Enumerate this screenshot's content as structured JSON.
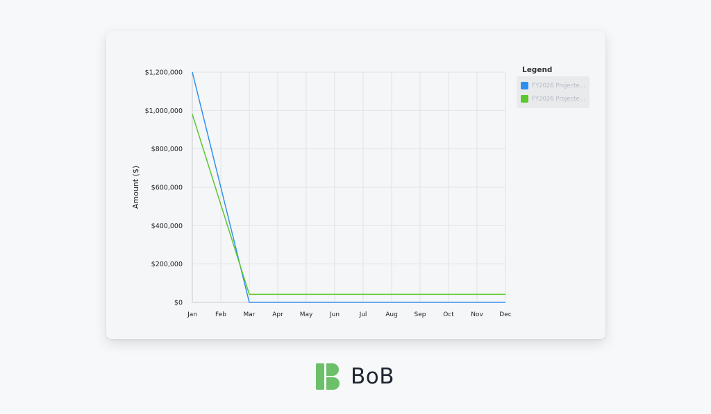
{
  "chart_data": {
    "type": "line",
    "ylabel": "Amount ($)",
    "xlabel": "",
    "categories": [
      "Jan",
      "Feb",
      "Mar",
      "Apr",
      "May",
      "Jun",
      "Jul",
      "Aug",
      "Sep",
      "Oct",
      "Nov",
      "Dec"
    ],
    "ylim": [
      0,
      1200000
    ],
    "yticks": [
      0,
      200000,
      400000,
      600000,
      800000,
      1000000,
      1200000
    ],
    "ytick_labels": [
      "$0",
      "$200,000",
      "$400,000",
      "$600,000",
      "$800,000",
      "$1,000,000",
      "$1,200,000"
    ],
    "grid": true,
    "legend_position": "right",
    "series": [
      {
        "name": "FY2026 Projecte...",
        "color": "#2f8fef",
        "values": [
          1200000,
          600000,
          0,
          0,
          0,
          0,
          0,
          0,
          0,
          0,
          0,
          0
        ]
      },
      {
        "name": "FY2026 Projecte...",
        "color": "#5bc72d",
        "values": [
          980000,
          510000,
          42000,
          42000,
          42000,
          42000,
          42000,
          42000,
          42000,
          42000,
          42000,
          42000
        ]
      }
    ]
  },
  "legend": {
    "title": "Legend"
  },
  "logo": {
    "text": "BoB",
    "color": "#6cc06a"
  }
}
